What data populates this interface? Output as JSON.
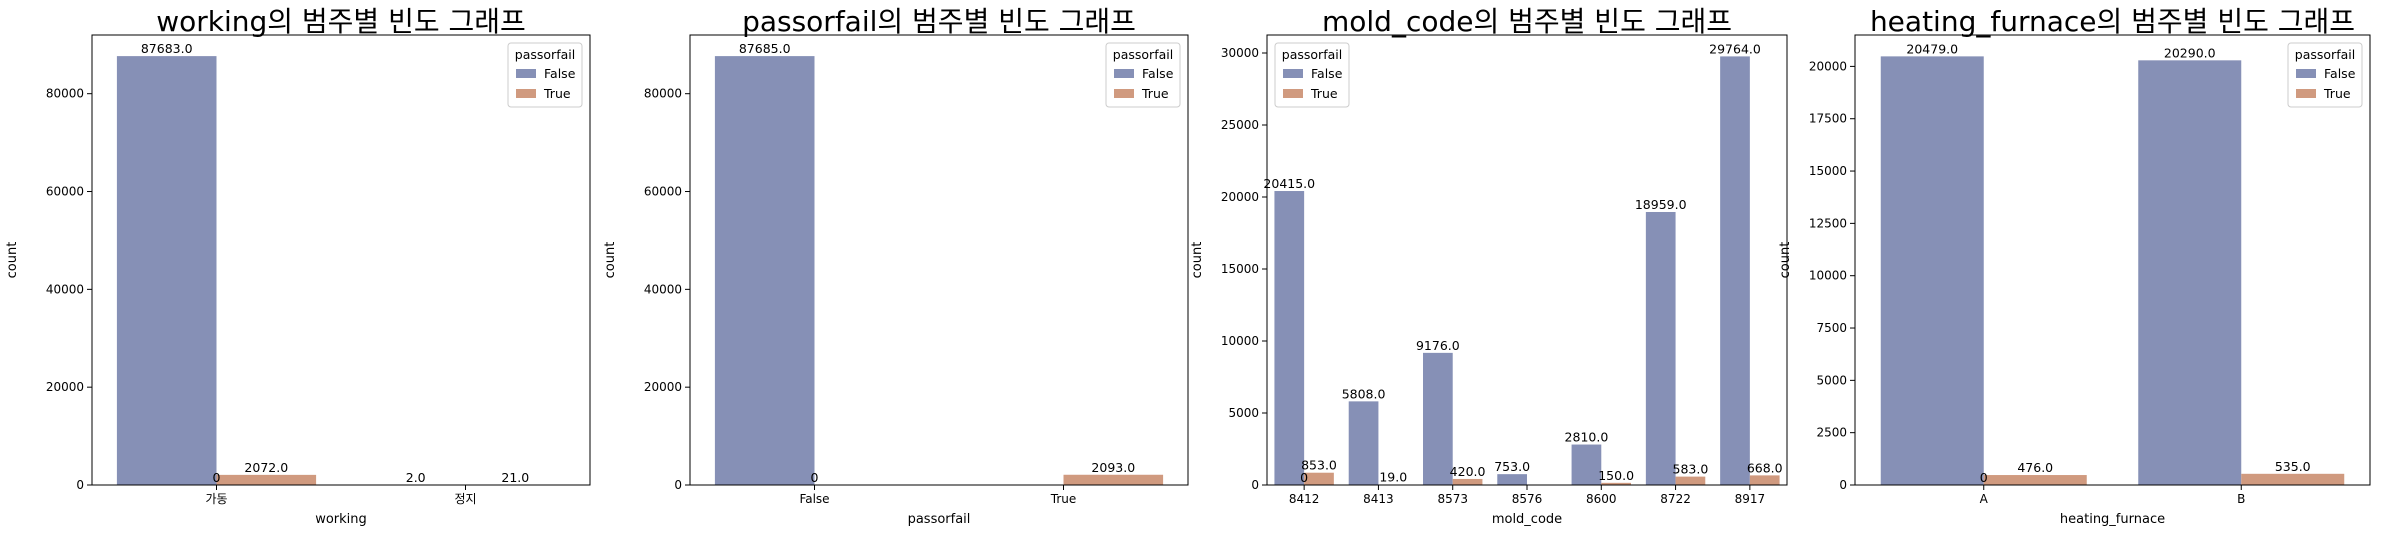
{
  "palette": {
    "False": "#8690b6",
    "True": "#d09a7f",
    "axis": "#000000",
    "legend_border": "#cccccc"
  },
  "chart_data": [
    {
      "type": "bar",
      "title": "working의 범주별 빈도 그래프",
      "xlabel": "working",
      "ylabel": "count",
      "categories": [
        "가동",
        "정지"
      ],
      "ylim": [
        0,
        92000
      ],
      "yticks": [
        0,
        20000,
        40000,
        60000,
        80000
      ],
      "legend": {
        "title": "passorfail",
        "position": "top-right"
      },
      "series": [
        {
          "name": "False",
          "values": [
            87683,
            2
          ],
          "labels": [
            "87683.0",
            "2.0"
          ]
        },
        {
          "name": "True",
          "values": [
            2072,
            21
          ],
          "labels": [
            "2072.0",
            "21.0"
          ]
        }
      ],
      "extra_labels": [
        {
          "text": "0",
          "category": 0,
          "value": 0
        }
      ]
    },
    {
      "type": "bar",
      "title": "passorfail의 범주별 빈도 그래프",
      "xlabel": "passorfail",
      "ylabel": "count",
      "categories": [
        "False",
        "True"
      ],
      "ylim": [
        0,
        92000
      ],
      "yticks": [
        0,
        20000,
        40000,
        60000,
        80000
      ],
      "legend": {
        "title": "passorfail",
        "position": "top-right"
      },
      "series": [
        {
          "name": "False",
          "values": [
            87685,
            0
          ],
          "labels": [
            "87685.0",
            null
          ]
        },
        {
          "name": "True",
          "values": [
            0,
            2093
          ],
          "labels": [
            null,
            "2093.0"
          ]
        }
      ],
      "extra_labels": [
        {
          "text": "0",
          "category": 0,
          "value": 0
        }
      ]
    },
    {
      "type": "bar",
      "title": "mold_code의 범주별 빈도 그래프",
      "xlabel": "mold_code",
      "ylabel": "count",
      "categories": [
        "8412",
        "8413",
        "8573",
        "8576",
        "8600",
        "8722",
        "8917"
      ],
      "ylim": [
        0,
        31250
      ],
      "yticks": [
        0,
        5000,
        10000,
        15000,
        20000,
        25000,
        30000
      ],
      "legend": {
        "title": "passorfail",
        "position": "top-left"
      },
      "series": [
        {
          "name": "False",
          "values": [
            20415,
            5808,
            9176,
            753,
            2810,
            18959,
            29764
          ],
          "labels": [
            "20415.0",
            "5808.0",
            "9176.0",
            "753.0",
            "2810.0",
            "18959.0",
            "29764.0"
          ]
        },
        {
          "name": "True",
          "values": [
            853,
            19,
            420,
            0,
            150,
            583,
            668
          ],
          "labels": [
            "853.0",
            "19.0",
            "420.0",
            null,
            "150.0",
            "583.0",
            "668.0"
          ]
        }
      ],
      "extra_labels": [
        {
          "text": "0",
          "category": 0,
          "value": 0
        }
      ]
    },
    {
      "type": "bar",
      "title": "heating_furnace의 범주별 빈도 그래프",
      "xlabel": "heating_furnace",
      "ylabel": "count",
      "categories": [
        "A",
        "B"
      ],
      "ylim": [
        0,
        21500
      ],
      "yticks": [
        0,
        2500,
        5000,
        7500,
        10000,
        12500,
        15000,
        17500,
        20000
      ],
      "legend": {
        "title": "passorfail",
        "position": "top-right"
      },
      "series": [
        {
          "name": "False",
          "values": [
            20479,
            20290
          ],
          "labels": [
            "20479.0",
            "20290.0"
          ]
        },
        {
          "name": "True",
          "values": [
            476,
            535
          ],
          "labels": [
            "476.0",
            "535.0"
          ]
        }
      ],
      "extra_labels": [
        {
          "text": "0",
          "category": 0,
          "value": 0
        }
      ]
    }
  ]
}
